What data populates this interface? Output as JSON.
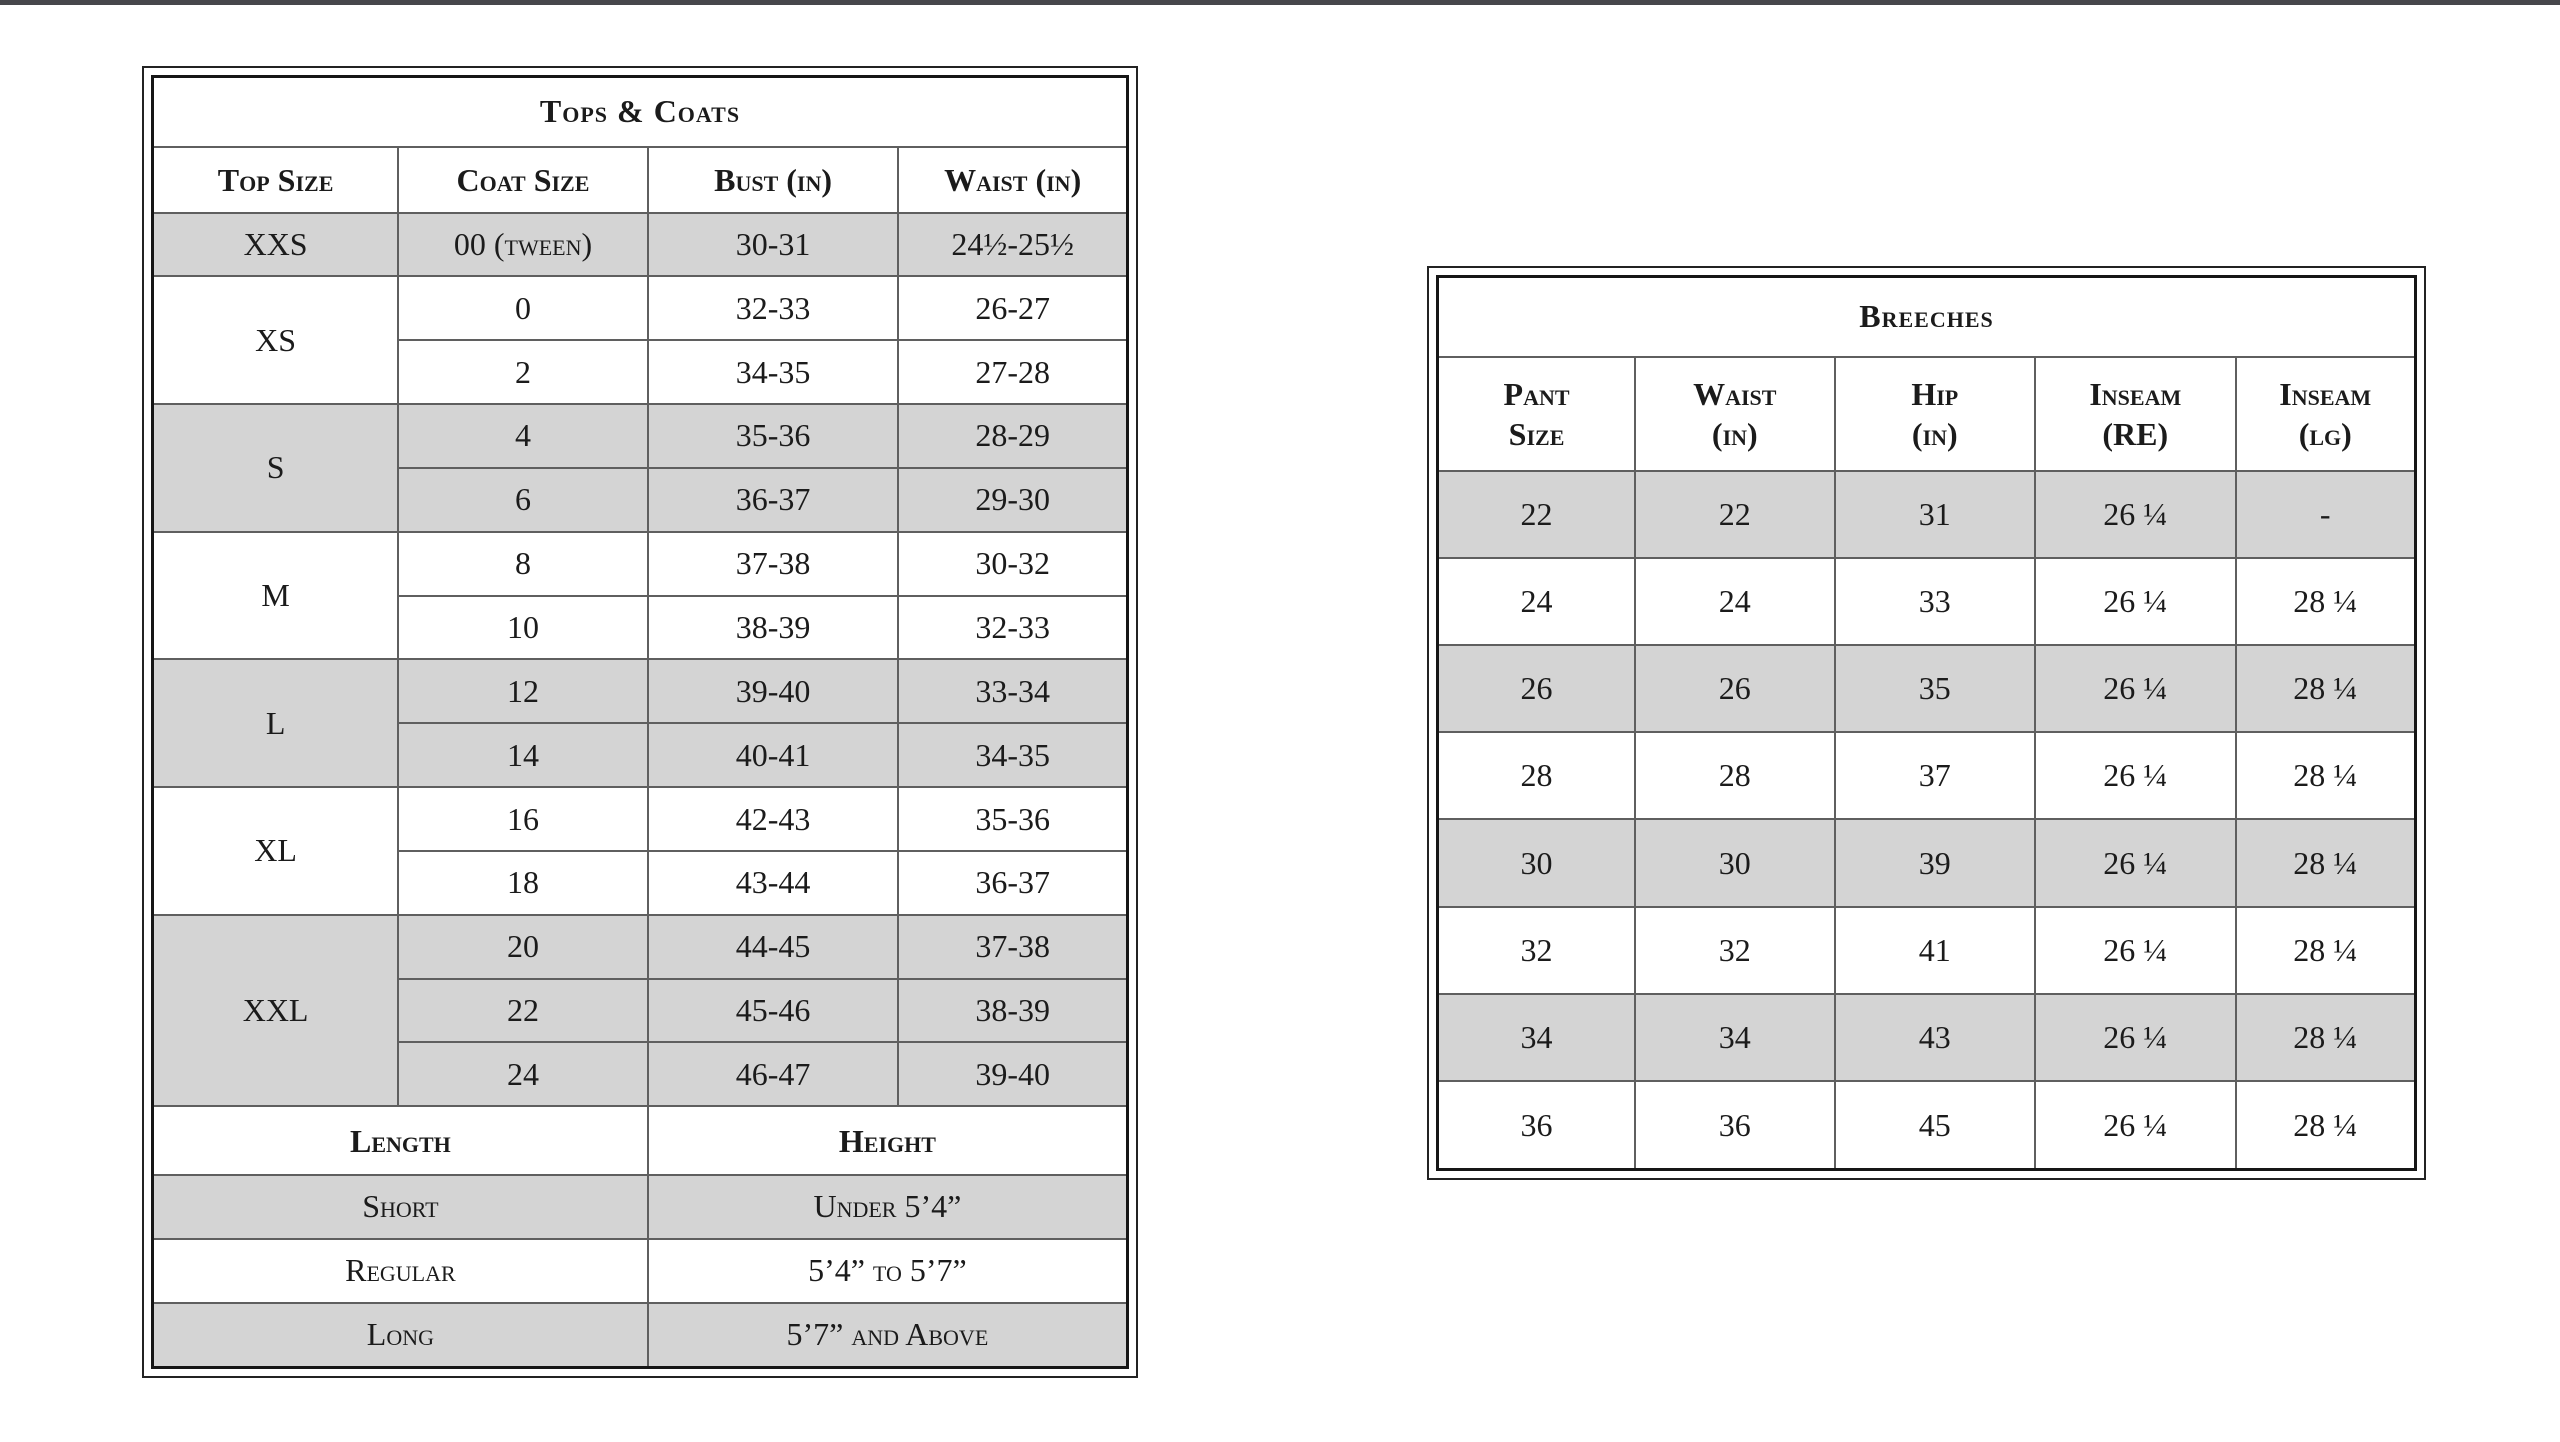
{
  "page": {
    "top_bar_color": "#47474b",
    "background": "#ffffff"
  },
  "colors": {
    "row_shade": "#d4d4d4",
    "grid_line": "#5f5f5f",
    "outer_border": "#232323",
    "text": "#1b1b1b"
  },
  "tops_coats": {
    "title": "Tops & Coats",
    "columns": [
      "Top Size",
      "Coat Size",
      "Bust (in)",
      "Waist (in)"
    ],
    "size_groups": [
      {
        "size": "XXS",
        "shade": true,
        "rows": [
          [
            "00 (tween)",
            "30-31",
            "24½-25½"
          ]
        ]
      },
      {
        "size": "XS",
        "shade": false,
        "rows": [
          [
            "0",
            "32-33",
            "26-27"
          ],
          [
            "2",
            "34-35",
            "27-28"
          ]
        ]
      },
      {
        "size": "S",
        "shade": true,
        "rows": [
          [
            "4",
            "35-36",
            "28-29"
          ],
          [
            "6",
            "36-37",
            "29-30"
          ]
        ]
      },
      {
        "size": "M",
        "shade": false,
        "rows": [
          [
            "8",
            "37-38",
            "30-32"
          ],
          [
            "10",
            "38-39",
            "32-33"
          ]
        ]
      },
      {
        "size": "L",
        "shade": true,
        "rows": [
          [
            "12",
            "39-40",
            "33-34"
          ],
          [
            "14",
            "40-41",
            "34-35"
          ]
        ]
      },
      {
        "size": "XL",
        "shade": false,
        "rows": [
          [
            "16",
            "42-43",
            "35-36"
          ],
          [
            "18",
            "43-44",
            "36-37"
          ]
        ]
      },
      {
        "size": "XXL",
        "shade": true,
        "rows": [
          [
            "20",
            "44-45",
            "37-38"
          ],
          [
            "22",
            "45-46",
            "38-39"
          ],
          [
            "24",
            "46-47",
            "39-40"
          ]
        ]
      }
    ],
    "length_section": {
      "headers": [
        "Length",
        "Height"
      ],
      "rows": [
        {
          "length": "Short",
          "height": "Under 5’4”",
          "shade": true
        },
        {
          "length": "Regular",
          "height": "5’4” to 5’7”",
          "shade": false
        },
        {
          "length": "Long",
          "height": "5’7” and Above",
          "shade": true
        }
      ]
    }
  },
  "breeches": {
    "title": "Breeches",
    "columns": [
      "Pant\nSize",
      "Waist\n(in)",
      "Hip\n(in)",
      "Inseam\n(RE)",
      "Inseam\n(lg)"
    ],
    "rows": [
      {
        "cells": [
          "22",
          "22",
          "31",
          "26 ¼",
          "-"
        ],
        "shade": true
      },
      {
        "cells": [
          "24",
          "24",
          "33",
          "26 ¼",
          "28 ¼"
        ],
        "shade": false
      },
      {
        "cells": [
          "26",
          "26",
          "35",
          "26 ¼",
          "28 ¼"
        ],
        "shade": true
      },
      {
        "cells": [
          "28",
          "28",
          "37",
          "26 ¼",
          "28 ¼"
        ],
        "shade": false
      },
      {
        "cells": [
          "30",
          "30",
          "39",
          "26 ¼",
          "28 ¼"
        ],
        "shade": true
      },
      {
        "cells": [
          "32",
          "32",
          "41",
          "26 ¼",
          "28 ¼"
        ],
        "shade": false
      },
      {
        "cells": [
          "34",
          "34",
          "43",
          "26 ¼",
          "28 ¼"
        ],
        "shade": true
      },
      {
        "cells": [
          "36",
          "36",
          "45",
          "26 ¼",
          "28 ¼"
        ],
        "shade": false
      }
    ]
  }
}
